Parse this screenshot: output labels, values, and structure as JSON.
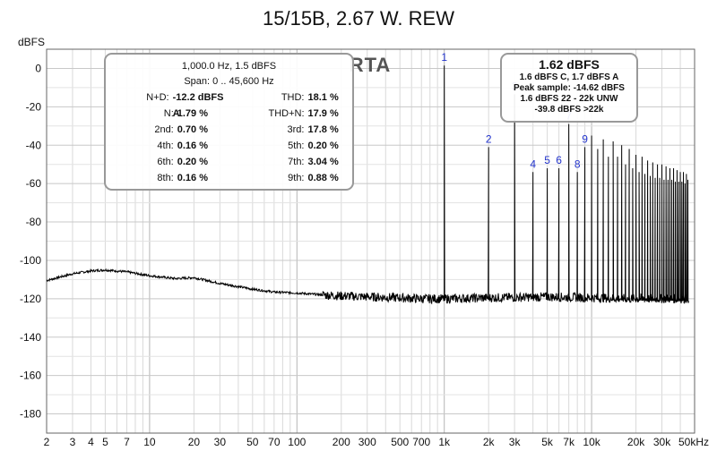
{
  "title": "15/15B, 2.67 W. REW",
  "y_unit_label": "dBFS",
  "rta_label": "RTA",
  "distortion_box": {
    "header": "1,000.0 Hz, 1.5 dBFS",
    "span": "Span: 0 .. 45,600 Hz",
    "rows": [
      {
        "l_label": "N+D:",
        "l_value": "-12.2 dBFS A",
        "r_label": "THD:",
        "r_value": "18.1 %"
      },
      {
        "l_label": "N:",
        "l_value": "1.79 %",
        "r_label": "THD+N:",
        "r_value": "17.9 %"
      },
      {
        "l_label": "2nd:",
        "l_value": "0.70 %",
        "r_label": "3rd:",
        "r_value": "17.8 %"
      },
      {
        "l_label": "4th:",
        "l_value": "0.16 %",
        "r_label": "5th:",
        "r_value": "0.20 %"
      },
      {
        "l_label": "6th:",
        "l_value": "0.20 %",
        "r_label": "7th:",
        "r_value": "3.04 %"
      },
      {
        "l_label": "8th:",
        "l_value": "0.16 %",
        "r_label": "9th:",
        "r_value": "0.88 %"
      }
    ]
  },
  "level_box": {
    "main": "1.62 dBFS",
    "lines": [
      "1.6 dBFS C, 1.7 dBFS A",
      "Peak sample: -14.62 dBFS",
      "1.6 dBFS 22 - 22k UNW",
      "-39.8 dBFS >22k"
    ]
  },
  "chart_data": {
    "type": "line",
    "x_scale": "log",
    "xlim": [
      2,
      50000
    ],
    "ylim": [
      -190,
      10
    ],
    "grid": true,
    "x_tick_labels": [
      "2",
      "3",
      "4",
      "5",
      "7",
      "10",
      "20",
      "30",
      "50",
      "70",
      "100",
      "200",
      "300",
      "500",
      "700",
      "1k",
      "2k",
      "3k",
      "5k",
      "7k",
      "10k",
      "20k",
      "30k",
      "50kHz"
    ],
    "x_tick_values": [
      2,
      3,
      4,
      5,
      7,
      10,
      20,
      30,
      50,
      70,
      100,
      200,
      300,
      500,
      700,
      1000,
      2000,
      3000,
      5000,
      7000,
      10000,
      20000,
      30000,
      50000
    ],
    "y_ticks": [
      0,
      -20,
      -40,
      -60,
      -80,
      -100,
      -120,
      -140,
      -160,
      -180
    ],
    "noise_floor": {
      "x": [
        2,
        3,
        4,
        5,
        7,
        10,
        15,
        20,
        30,
        50,
        70,
        100,
        150,
        200,
        300,
        500,
        700,
        1000,
        2000,
        5000,
        10000,
        20000,
        50000
      ],
      "y": [
        -110.5,
        -107,
        -105.5,
        -105,
        -106,
        -108,
        -109.5,
        -109,
        -112,
        -115,
        -116.5,
        -117,
        -118,
        -118.5,
        -119,
        -119.5,
        -120,
        -120,
        -119.5,
        -119,
        -119.5,
        -120,
        -120
      ]
    },
    "harmonics": [
      {
        "label": "1",
        "freq": 1000,
        "level": 1.5
      },
      {
        "label": "2",
        "freq": 2000,
        "level": -41
      },
      {
        "label": "3",
        "freq": 3000,
        "level": -13.5
      },
      {
        "label": "4",
        "freq": 4000,
        "level": -54
      },
      {
        "label": "5",
        "freq": 5000,
        "level": -52
      },
      {
        "label": "6",
        "freq": 6000,
        "level": -52
      },
      {
        "label": "7",
        "freq": 7000,
        "level": -29
      },
      {
        "label": "8",
        "freq": 8000,
        "level": -54
      },
      {
        "label": "9",
        "freq": 9000,
        "level": -41
      }
    ],
    "upper_harmonics": {
      "freq": [
        10000,
        11000,
        12000,
        13000,
        14000,
        15000,
        16000,
        17000,
        18000,
        19000,
        20000,
        21000,
        22000,
        23000,
        24000,
        25000,
        26000,
        27000,
        28000,
        29000,
        30000,
        31000,
        32000,
        33000,
        34000,
        35000,
        36000,
        37000,
        38000,
        39000,
        40000,
        41000,
        42000,
        43000,
        44000,
        45000
      ],
      "level": [
        -35,
        -42,
        -37,
        -46,
        -38,
        -46,
        -40,
        -50,
        -42,
        -52,
        -45,
        -54,
        -46,
        -55,
        -48,
        -56,
        -49,
        -57,
        -50,
        -57,
        -50,
        -58,
        -51,
        -58,
        -52,
        -58,
        -52,
        -59,
        -53,
        -59,
        -54,
        -59,
        -54,
        -60,
        -55,
        -58
      ]
    }
  }
}
